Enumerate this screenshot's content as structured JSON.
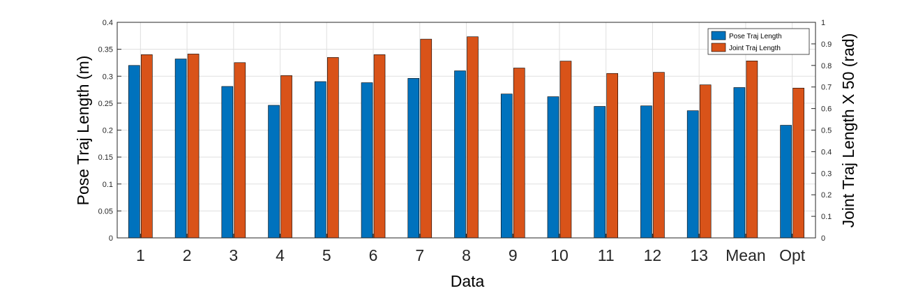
{
  "chart_data": {
    "type": "bar",
    "categories": [
      "1",
      "2",
      "3",
      "4",
      "5",
      "6",
      "7",
      "8",
      "9",
      "10",
      "11",
      "12",
      "13",
      "Mean",
      "Opt"
    ],
    "series": [
      {
        "name": "Pose Traj Length",
        "axis": "left",
        "color": "#0072BD",
        "values": [
          0.32,
          0.332,
          0.281,
          0.246,
          0.29,
          0.288,
          0.296,
          0.31,
          0.267,
          0.262,
          0.244,
          0.245,
          0.236,
          0.279,
          0.209
        ]
      },
      {
        "name": "Joint Traj Length",
        "axis": "right",
        "color": "#D95319",
        "values": [
          0.85,
          0.853,
          0.813,
          0.753,
          0.837,
          0.85,
          0.922,
          0.933,
          0.788,
          0.82,
          0.763,
          0.768,
          0.71,
          0.821,
          0.695
        ]
      }
    ],
    "xlabel": "Data",
    "ylabel": "Pose Traj Length (m)",
    "ylabel_right": "Joint Traj Length X 50 (rad)",
    "ylim": [
      0,
      0.4
    ],
    "ylim_right": [
      0,
      1
    ],
    "yticks": [
      "0",
      "0.05",
      "0.1",
      "0.15",
      "0.2",
      "0.25",
      "0.3",
      "0.35",
      "0.4"
    ],
    "yticks_right": [
      "0",
      "0.1",
      "0.2",
      "0.3",
      "0.4",
      "0.5",
      "0.6",
      "0.7",
      "0.8",
      "0.9",
      "1"
    ],
    "grid": true,
    "legend_position": "top-right"
  }
}
